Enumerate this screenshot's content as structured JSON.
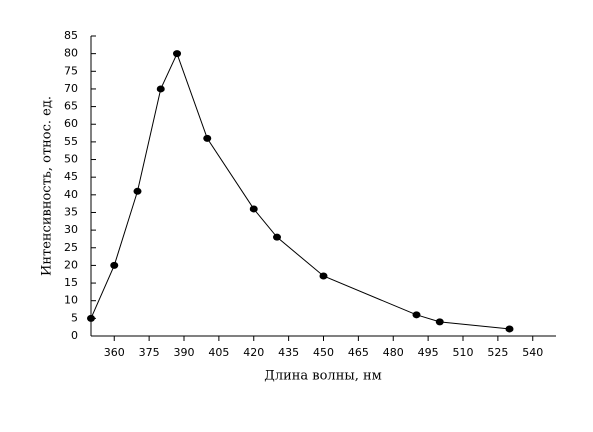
{
  "chart_data": {
    "type": "line",
    "xlabel": "Длина волны, нм",
    "ylabel": "Интенсивность, относ. ед.",
    "x": [
      350,
      360,
      370,
      380,
      387,
      400,
      420,
      430,
      450,
      490,
      500,
      530
    ],
    "series": [
      {
        "color": "#000000",
        "values": [
          5,
          20,
          41,
          70,
          80,
          56,
          36,
          28,
          17,
          6,
          4,
          2
        ]
      }
    ],
    "xlim": [
      350,
      550
    ],
    "xticks": [
      360,
      375,
      390,
      405,
      420,
      435,
      450,
      465,
      480,
      495,
      510,
      525,
      540
    ],
    "ylim": [
      0,
      85
    ],
    "yticks": [
      0,
      5,
      10,
      15,
      20,
      25,
      30,
      35,
      40,
      45,
      50,
      55,
      60,
      65,
      70,
      75,
      80,
      85
    ],
    "grid": false
  }
}
